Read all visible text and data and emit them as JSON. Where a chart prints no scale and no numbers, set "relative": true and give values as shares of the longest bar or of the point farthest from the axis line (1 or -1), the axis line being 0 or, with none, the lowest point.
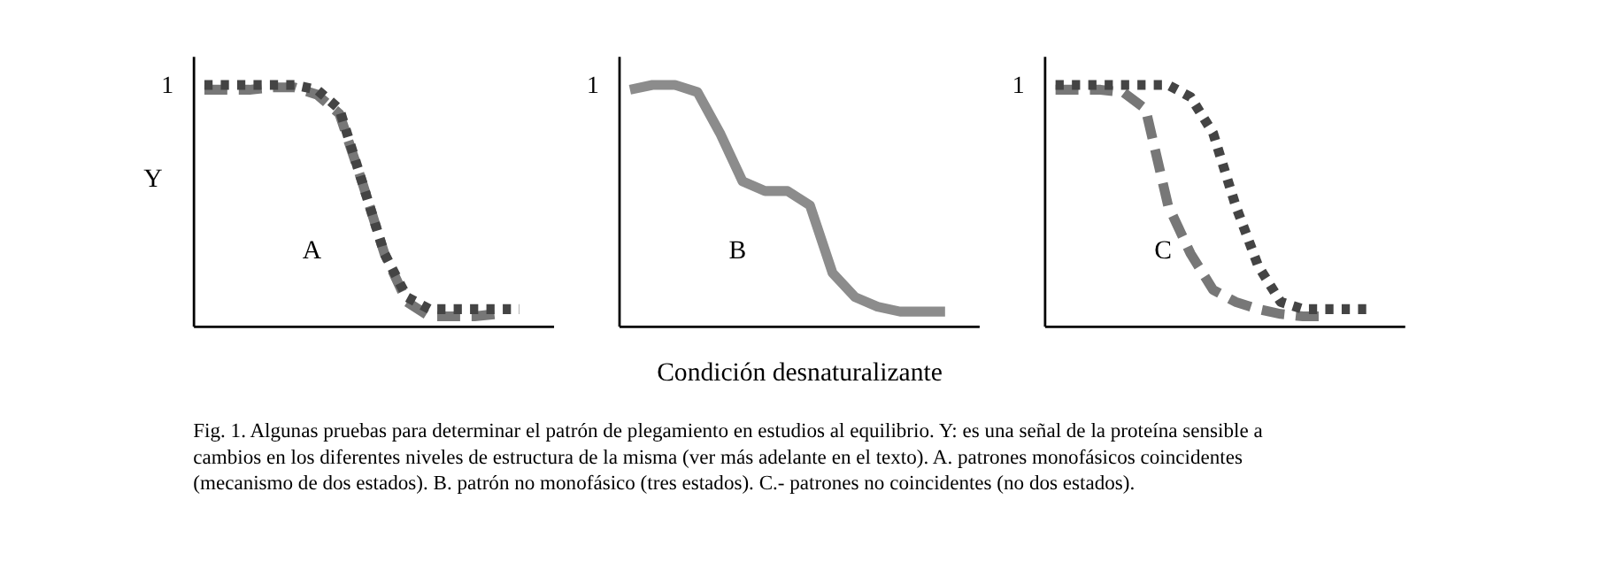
{
  "chart_data": [
    {
      "type": "line",
      "relative": true,
      "ylabel": "Y",
      "categories": [
        null,
        null,
        null,
        null,
        null,
        null,
        null,
        null,
        null,
        null,
        null,
        null,
        null,
        null,
        null
      ],
      "tick_labels": false,
      "grid": false,
      "marker": "none",
      "series": [
        {
          "color": "#777777",
          "line_style": "dashed",
          "values": [
            0.98,
            0.98,
            0.98,
            0.99,
            0.99,
            0.96,
            0.88,
            0.6,
            0.3,
            0.1,
            0.04,
            0.04,
            0.04,
            0.05,
            null
          ]
        },
        {
          "color": "#444444",
          "line_style": "dotted",
          "values": [
            1.0,
            1.0,
            1.0,
            1.0,
            1.0,
            0.98,
            0.9,
            0.6,
            0.3,
            0.12,
            0.07,
            0.07,
            0.07,
            0.07,
            0.07
          ]
        }
      ],
      "annotations": [
        "1",
        "A"
      ]
    },
    {
      "type": "line",
      "relative": true,
      "xlabel": "Condición desnaturalizante",
      "categories": [
        null,
        null,
        null,
        null,
        null,
        null,
        null,
        null,
        null,
        null,
        null,
        null,
        null,
        null,
        null
      ],
      "tick_labels": false,
      "grid": false,
      "marker": "none",
      "series": [
        {
          "color": "#8c8c8c",
          "line_style": "solid",
          "values": [
            0.98,
            1.0,
            1.0,
            0.97,
            0.8,
            0.6,
            0.56,
            0.56,
            0.5,
            0.22,
            0.12,
            0.08,
            0.06,
            0.06,
            0.06
          ]
        }
      ],
      "annotations": [
        "1",
        "B",
        "Fig. 1. Algunas pruebas para determinar el patrón de plegamiento en estudios al equilibrio. Y: es una señal de la proteína sensible a cambios en los diferentes niveles de estructura de la misma (ver más adelante en el texto). A. patrones monofásicos coincidentes (mecanismo de dos estados). B. patrón no monofásico (tres estados). C.- patrones no coincidentes (no dos estados)."
      ]
    },
    {
      "type": "line",
      "relative": true,
      "categories": [
        null,
        null,
        null,
        null,
        null,
        null,
        null,
        null,
        null,
        null,
        null,
        null,
        null,
        null,
        null
      ],
      "tick_labels": false,
      "grid": false,
      "marker": "none",
      "series": [
        {
          "color": "#777777",
          "line_style": "dashed",
          "values": [
            0.98,
            0.98,
            0.98,
            0.97,
            0.9,
            0.5,
            0.3,
            0.15,
            0.1,
            0.07,
            0.05,
            0.04,
            0.04,
            null,
            null
          ]
        },
        {
          "color": "#444444",
          "line_style": "dotted",
          "values": [
            1.0,
            1.0,
            1.0,
            1.0,
            1.0,
            1.0,
            0.95,
            0.8,
            0.5,
            0.25,
            0.1,
            0.07,
            0.07,
            0.07,
            0.07
          ]
        }
      ],
      "annotations": [
        "1",
        "C"
      ]
    }
  ]
}
